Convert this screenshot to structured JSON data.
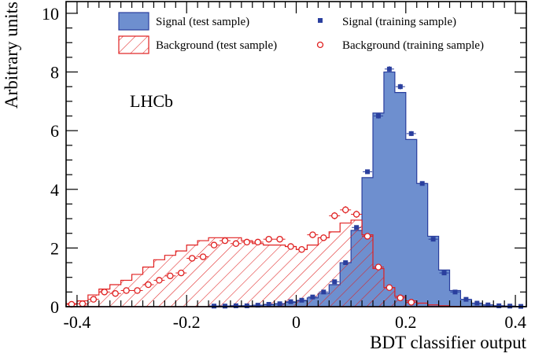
{
  "chart_data": {
    "type": "histogram",
    "xlabel": "BDT classifier output",
    "ylabel": "Arbitrary units",
    "xlim": [
      -0.42,
      0.42
    ],
    "ylim": [
      0,
      10.4
    ],
    "xticks": [
      "-0.4",
      "-0.2",
      "0",
      "0.2",
      "0.4"
    ],
    "xtick_values": [
      -0.4,
      -0.2,
      0,
      0.2,
      0.4
    ],
    "yticks": [
      "0",
      "2",
      "4",
      "6",
      "8",
      "10"
    ],
    "ytick_values": [
      0,
      2,
      4,
      6,
      8,
      10
    ],
    "annotation": "LHCb",
    "bin_width": 0.02,
    "bin_edges_start": -0.42,
    "series": [
      {
        "name": "Signal (test sample)",
        "style": "filled-histogram",
        "color": "#6e8fcf",
        "edge_color": "#2a3f9e",
        "values": [
          0,
          0,
          0,
          0,
          0,
          0,
          0,
          0,
          0,
          0,
          0,
          0,
          0,
          0.02,
          0.02,
          0.03,
          0.03,
          0.05,
          0.07,
          0.1,
          0.15,
          0.2,
          0.3,
          0.45,
          0.75,
          1.5,
          2.6,
          4.4,
          6.6,
          8.0,
          7.3,
          5.7,
          4.2,
          2.4,
          1.25,
          0.55,
          0.25,
          0.12,
          0.06,
          0.03,
          0.02,
          0.01
        ]
      },
      {
        "name": "Background (test sample)",
        "style": "hatched-histogram",
        "color": "#e02020",
        "values": [
          0.1,
          0.2,
          0.4,
          0.6,
          0.75,
          0.9,
          1.1,
          1.35,
          1.6,
          1.75,
          1.9,
          2.1,
          2.25,
          2.35,
          2.35,
          2.35,
          2.25,
          2.15,
          2.1,
          2.1,
          2.05,
          1.95,
          2.1,
          2.35,
          2.55,
          2.85,
          2.95,
          2.45,
          1.3,
          0.65,
          0.35,
          0.2,
          0.12,
          0.06,
          0.03,
          0.01,
          0,
          0,
          0,
          0,
          0,
          0
        ]
      },
      {
        "name": "Signal (training sample)",
        "style": "filled-square-markers",
        "color": "#2a3f9e",
        "values": [
          null,
          null,
          null,
          null,
          null,
          null,
          null,
          null,
          null,
          null,
          null,
          null,
          null,
          0.02,
          0.02,
          0.03,
          0.03,
          0.05,
          0.08,
          0.1,
          0.17,
          0.22,
          0.33,
          0.5,
          0.85,
          1.5,
          2.7,
          4.6,
          6.5,
          8.1,
          7.5,
          5.9,
          4.2,
          2.3,
          1.15,
          0.5,
          0.25,
          0.12,
          0.06,
          0.03,
          0.02,
          0.01
        ]
      },
      {
        "name": "Background (training sample)",
        "style": "open-circle-markers",
        "color": "#e02020",
        "values": [
          0.08,
          0.1,
          0.25,
          0.5,
          0.45,
          0.55,
          0.55,
          0.75,
          0.9,
          1.05,
          1.15,
          1.65,
          1.7,
          2.1,
          2.25,
          2.15,
          2.2,
          2.2,
          2.3,
          2.3,
          2.05,
          1.95,
          2.45,
          2.35,
          3.1,
          3.3,
          3.15,
          2.4,
          1.35,
          0.65,
          0.3,
          0.15,
          null,
          null,
          null,
          null,
          null,
          null,
          null,
          null,
          null,
          null
        ]
      }
    ],
    "legend": [
      {
        "label": "Signal (test sample)",
        "style": "filled-box"
      },
      {
        "label": "Background (test sample)",
        "style": "hatched-box"
      },
      {
        "label": "Signal (training sample)",
        "style": "filled-square"
      },
      {
        "label": "Background (training sample)",
        "style": "open-circle"
      }
    ]
  }
}
